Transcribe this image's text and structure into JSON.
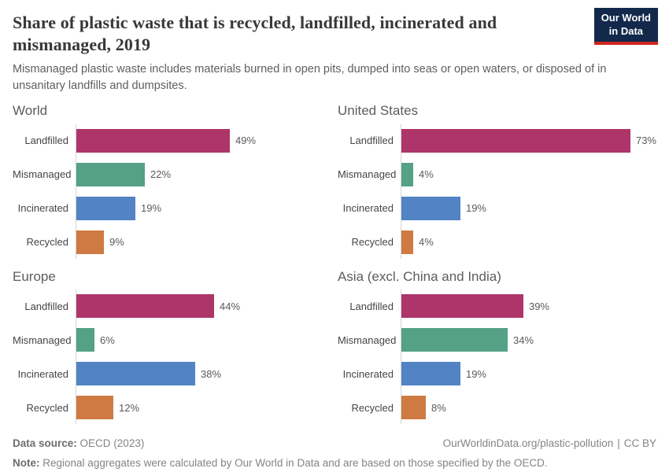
{
  "header": {
    "title": "Share of plastic waste that is recycled, landfilled, incinerated and mismanaged, 2019",
    "subtitle": "Mismanaged plastic waste includes materials burned in open pits, dumped into seas or open waters, or disposed of in unsanitary landfills and dumpsites.",
    "logo_line1": "Our World",
    "logo_line2": "in Data"
  },
  "chart_data": [
    {
      "type": "bar",
      "title": "World",
      "categories": [
        "Landfilled",
        "Mismanaged",
        "Incinerated",
        "Recycled"
      ],
      "values": [
        49,
        22,
        19,
        9
      ],
      "value_labels": [
        "49%",
        "22%",
        "19%",
        "9%"
      ],
      "unit": "%",
      "xlim": [
        0,
        80
      ],
      "orientation": "horizontal",
      "grid": false
    },
    {
      "type": "bar",
      "title": "United States",
      "categories": [
        "Landfilled",
        "Mismanaged",
        "Incinerated",
        "Recycled"
      ],
      "values": [
        73,
        4,
        19,
        4
      ],
      "value_labels": [
        "73%",
        "4%",
        "19%",
        "4%"
      ],
      "unit": "%",
      "xlim": [
        0,
        80
      ],
      "orientation": "horizontal",
      "grid": false
    },
    {
      "type": "bar",
      "title": "Europe",
      "categories": [
        "Landfilled",
        "Mismanaged",
        "Incinerated",
        "Recycled"
      ],
      "values": [
        44,
        6,
        38,
        12
      ],
      "value_labels": [
        "44%",
        "6%",
        "38%",
        "12%"
      ],
      "unit": "%",
      "xlim": [
        0,
        80
      ],
      "orientation": "horizontal",
      "grid": false
    },
    {
      "type": "bar",
      "title": "Asia (excl. China and India)",
      "categories": [
        "Landfilled",
        "Mismanaged",
        "Incinerated",
        "Recycled"
      ],
      "values": [
        39,
        34,
        19,
        8
      ],
      "value_labels": [
        "39%",
        "34%",
        "19%",
        "8%"
      ],
      "unit": "%",
      "xlim": [
        0,
        80
      ],
      "orientation": "horizontal",
      "grid": false
    }
  ],
  "colors": {
    "landfilled": "#AE3569",
    "mismanaged": "#55A186",
    "incinerated": "#5283C4",
    "recycled": "#CE7A42",
    "axis": "#D4D4D4",
    "logo_bg": "#12294C",
    "logo_accent": "#CE261F"
  },
  "footer": {
    "source_label": "Data source:",
    "source_text": "OECD (2023)",
    "url_text": "OurWorldinData.org/plastic-pollution",
    "divider": "|",
    "license_text": "CC BY",
    "note_label": "Note:",
    "note_text": "Regional aggregates were calculated by Our World in Data and are based on those specified by the OECD."
  }
}
